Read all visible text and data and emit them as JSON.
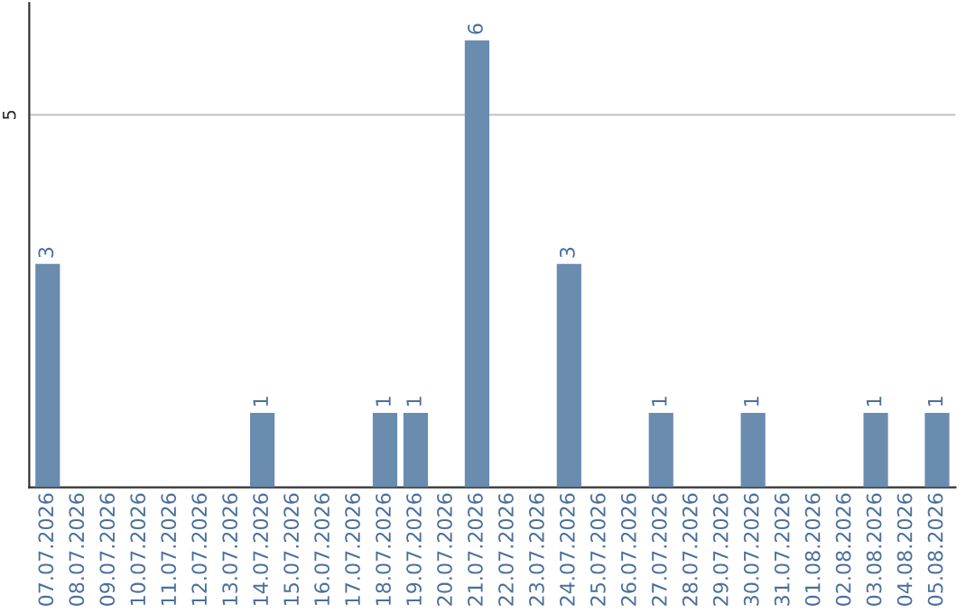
{
  "chart_data": {
    "type": "bar",
    "categories": [
      "07.07.2026",
      "08.07.2026",
      "09.07.2026",
      "10.07.2026",
      "11.07.2026",
      "12.07.2026",
      "13.07.2026",
      "14.07.2026",
      "15.07.2026",
      "16.07.2026",
      "17.07.2026",
      "18.07.2026",
      "19.07.2026",
      "20.07.2026",
      "21.07.2026",
      "22.07.2026",
      "23.07.2026",
      "24.07.2026",
      "25.07.2026",
      "26.07.2026",
      "27.07.2026",
      "28.07.2026",
      "29.07.2026",
      "30.07.2026",
      "31.07.2026",
      "01.08.2026",
      "02.08.2026",
      "03.08.2026",
      "04.08.2026",
      "05.08.2026"
    ],
    "values": [
      3,
      0,
      0,
      0,
      0,
      0,
      0,
      1,
      0,
      0,
      0,
      1,
      1,
      0,
      6,
      0,
      0,
      3,
      0,
      0,
      1,
      0,
      0,
      1,
      0,
      0,
      0,
      1,
      0,
      1
    ],
    "value_labels": [
      "3",
      null,
      null,
      null,
      null,
      null,
      null,
      "1",
      null,
      null,
      null,
      "1",
      "1",
      null,
      "6",
      null,
      null,
      "3",
      null,
      null,
      "1",
      null,
      null,
      "1",
      null,
      null,
      null,
      "1",
      null,
      "1"
    ],
    "color": "#6a8caf",
    "ylim": [
      0,
      6.5
    ],
    "yticks": [
      5
    ],
    "grid": "y"
  }
}
